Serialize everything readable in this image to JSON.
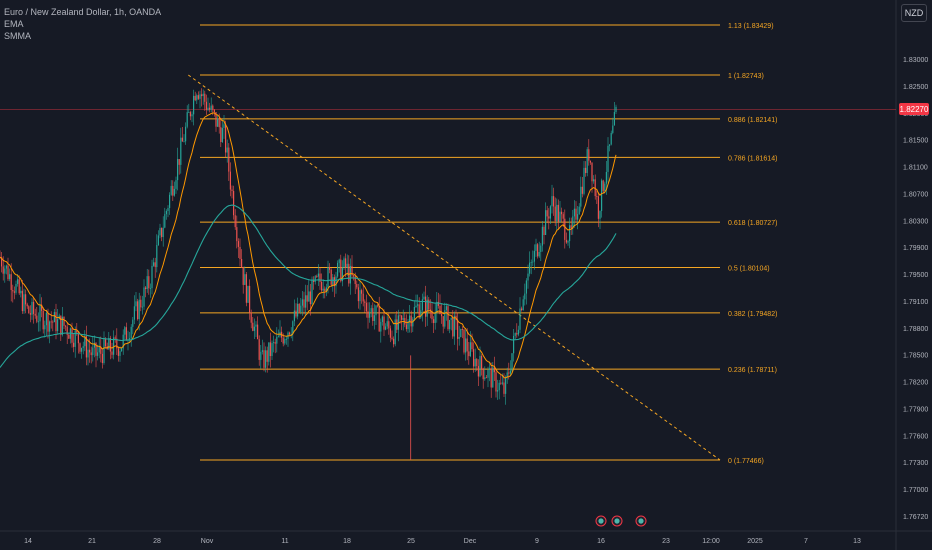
{
  "symbol": {
    "title": "Euro / New Zealand Dollar, 1h, OANDA",
    "indicators": [
      "EMA",
      "SMMA"
    ],
    "currency": "NZD"
  },
  "colors": {
    "background": "#161a25",
    "fib": "#f5a623",
    "up": "#26a69a",
    "down": "#ef5350",
    "ema": "#ff9800",
    "smma": "#26a69a",
    "price_line": "#f23645",
    "axis_text": "#b2b5be"
  },
  "chart_data": {
    "type": "candlestick",
    "title": "Euro / New Zealand Dollar, 1h, OANDA",
    "current_price": "1.82270",
    "y_range": [
      1.767,
      1.837
    ],
    "y_ticks": [
      "1.83000",
      "1.82500",
      "1.82000",
      "1.81500",
      "1.81100",
      "1.80700",
      "1.80300",
      "1.79900",
      "1.79500",
      "1.79100",
      "1.78800",
      "1.78500",
      "1.78200",
      "1.77900",
      "1.77600",
      "1.77300",
      "1.77000",
      "1.76720"
    ],
    "x_ticks": [
      "14",
      "21",
      "28",
      "Nov",
      "11",
      "18",
      "25",
      "Dec",
      "9",
      "16",
      "23",
      "12:00",
      "2025",
      "7",
      "13"
    ],
    "fib_levels": [
      {
        "label": "1.13 (1.83429)",
        "ratio": 1.13,
        "price": 1.83429
      },
      {
        "label": "1 (1.82743)",
        "ratio": 1,
        "price": 1.82743
      },
      {
        "label": "0.886 (1.82141)",
        "ratio": 0.886,
        "price": 1.82141
      },
      {
        "label": "0.786 (1.81614)",
        "ratio": 0.786,
        "price": 1.81614
      },
      {
        "label": "0.618 (1.80727)",
        "ratio": 0.618,
        "price": 1.80727
      },
      {
        "label": "0.5 (1.80104)",
        "ratio": 0.5,
        "price": 1.80104
      },
      {
        "label": "0.382 (1.79482)",
        "ratio": 0.382,
        "price": 1.79482
      },
      {
        "label": "0.236 (1.78711)",
        "ratio": 0.236,
        "price": 1.78711
      },
      {
        "label": "0 (1.77466)",
        "ratio": 0,
        "price": 1.77466
      }
    ],
    "trendline": {
      "from": {
        "date": "Nov 1",
        "price": 1.82743
      },
      "to": {
        "date": "Dec 30",
        "price": 1.77466
      },
      "style": "dashed"
    },
    "price_path": [
      {
        "date": "Oct 10",
        "price": 1.805
      },
      {
        "date": "Oct 14",
        "price": 1.795
      },
      {
        "date": "Oct 18",
        "price": 1.793
      },
      {
        "date": "Oct 21",
        "price": 1.789
      },
      {
        "date": "Oct 24",
        "price": 1.7905
      },
      {
        "date": "Oct 27",
        "price": 1.799
      },
      {
        "date": "Oct 29",
        "price": 1.81
      },
      {
        "date": "Nov 1",
        "price": 1.826
      },
      {
        "date": "Nov 4",
        "price": 1.819
      },
      {
        "date": "Nov 6",
        "price": 1.8
      },
      {
        "date": "Nov 8",
        "price": 1.788
      },
      {
        "date": "Nov 11",
        "price": 1.793
      },
      {
        "date": "Nov 14",
        "price": 1.799
      },
      {
        "date": "Nov 17",
        "price": 1.801
      },
      {
        "date": "Nov 19",
        "price": 1.796
      },
      {
        "date": "Nov 22",
        "price": 1.792
      },
      {
        "date": "Nov 25",
        "price": 1.796
      },
      {
        "date": "Nov 28",
        "price": 1.794
      },
      {
        "date": "Dec 1",
        "price": 1.788
      },
      {
        "date": "Dec 4",
        "price": 1.784
      },
      {
        "date": "Dec 6",
        "price": 1.798
      },
      {
        "date": "Dec 9",
        "price": 1.81
      },
      {
        "date": "Dec 11",
        "price": 1.805
      },
      {
        "date": "Dec 13",
        "price": 1.817
      },
      {
        "date": "Dec 14",
        "price": 1.809
      },
      {
        "date": "Dec 16",
        "price": 1.8227
      }
    ]
  }
}
